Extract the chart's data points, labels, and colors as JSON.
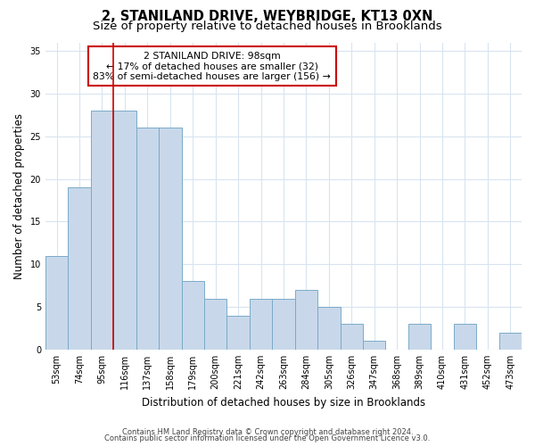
{
  "title": "2, STANILAND DRIVE, WEYBRIDGE, KT13 0XN",
  "subtitle": "Size of property relative to detached houses in Brooklands",
  "xlabel": "Distribution of detached houses by size in Brooklands",
  "ylabel": "Number of detached properties",
  "categories": [
    "53sqm",
    "74sqm",
    "95sqm",
    "116sqm",
    "137sqm",
    "158sqm",
    "179sqm",
    "200sqm",
    "221sqm",
    "242sqm",
    "263sqm",
    "284sqm",
    "305sqm",
    "326sqm",
    "347sqm",
    "368sqm",
    "389sqm",
    "410sqm",
    "431sqm",
    "452sqm",
    "473sqm"
  ],
  "values": [
    11,
    19,
    28,
    28,
    26,
    26,
    8,
    6,
    4,
    6,
    6,
    7,
    5,
    3,
    1,
    0,
    3,
    0,
    3,
    0,
    2
  ],
  "bar_color": "#c8d8ea",
  "bar_edge_color": "#7aaac8",
  "annotation_title": "2 STANILAND DRIVE: 98sqm",
  "annotation_line1": "← 17% of detached houses are smaller (32)",
  "annotation_line2": "83% of semi-detached houses are larger (156) →",
  "annotation_box_color": "#ffffff",
  "annotation_box_edge_color": "#cc0000",
  "red_line_x": 2.5,
  "ylim": [
    0,
    36
  ],
  "yticks": [
    0,
    5,
    10,
    15,
    20,
    25,
    30,
    35
  ],
  "bg_color": "#ffffff",
  "plot_bg_color": "#ffffff",
  "grid_color": "#d8e4f0",
  "title_fontsize": 10.5,
  "subtitle_fontsize": 9.5,
  "axis_label_fontsize": 8.5,
  "tick_fontsize": 7,
  "footer1": "Contains HM Land Registry data © Crown copyright and database right 2024.",
  "footer2": "Contains public sector information licensed under the Open Government Licence v3.0."
}
